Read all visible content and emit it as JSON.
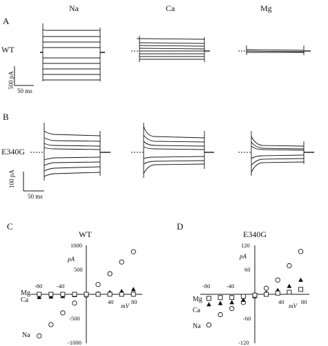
{
  "columns": [
    "Na",
    "Ca",
    "Mg"
  ],
  "panels": {
    "A": {
      "letter": "A",
      "row_label": "WT",
      "scale_y": "500 pA",
      "scale_x": "50 ms"
    },
    "B": {
      "letter": "B",
      "row_label": "E340G",
      "scale_y": "100 pA",
      "scale_x": "50 ms"
    },
    "C": {
      "letter": "C",
      "title": "WT",
      "y_unit": "pA",
      "x_unit": "mV",
      "y_ticks": [
        "1000",
        "500",
        "-500",
        "-1000"
      ],
      "x_ticks": [
        "-80",
        "-40",
        "40",
        "80"
      ],
      "ion_labels": {
        "mg": "Mg",
        "ca": "Ca",
        "na": "Na"
      }
    },
    "D": {
      "letter": "D",
      "title": "E340G",
      "y_unit": "pA",
      "x_unit": "mV",
      "y_ticks": [
        "120",
        "60",
        "-60",
        "-120"
      ],
      "x_ticks": [
        "-80",
        "-40",
        "40",
        "80"
      ],
      "ion_labels": {
        "mg": "Mg",
        "ca": "Ca",
        "na": "Na"
      }
    }
  },
  "chart_data": [
    {
      "type": "scatter",
      "title": "WT",
      "xlabel": "mV",
      "ylabel": "pA",
      "xlim": [
        -95,
        95
      ],
      "ylim": [
        -1000,
        1000
      ],
      "series": [
        {
          "name": "Na",
          "marker": "open-circle",
          "points": [
            [
              -80,
              -850
            ],
            [
              -60,
              -620
            ],
            [
              -40,
              -380
            ],
            [
              -20,
              -180
            ],
            [
              0,
              -20
            ],
            [
              20,
              200
            ],
            [
              40,
              420
            ],
            [
              60,
              660
            ],
            [
              80,
              870
            ]
          ]
        },
        {
          "name": "Ca",
          "marker": "filled-triangle",
          "points": [
            [
              -80,
              -60
            ],
            [
              -60,
              -50
            ],
            [
              -40,
              -40
            ],
            [
              -20,
              -20
            ],
            [
              0,
              0
            ],
            [
              20,
              20
            ],
            [
              40,
              40
            ],
            [
              60,
              60
            ],
            [
              80,
              100
            ]
          ]
        },
        {
          "name": "Mg",
          "marker": "open-square",
          "points": [
            [
              -80,
              0
            ],
            [
              -60,
              0
            ],
            [
              -40,
              0
            ],
            [
              -20,
              0
            ],
            [
              0,
              0
            ],
            [
              20,
              0
            ],
            [
              40,
              0
            ],
            [
              60,
              0
            ],
            [
              80,
              0
            ]
          ]
        }
      ]
    },
    {
      "type": "scatter",
      "title": "E340G",
      "xlabel": "mV",
      "ylabel": "pA",
      "xlim": [
        -95,
        95
      ],
      "ylim": [
        -120,
        120
      ],
      "series": [
        {
          "name": "Na",
          "marker": "open-circle",
          "points": [
            [
              -80,
              -75
            ],
            [
              -60,
              -50
            ],
            [
              -40,
              -35
            ],
            [
              -20,
              -20
            ],
            [
              0,
              -5
            ],
            [
              20,
              15
            ],
            [
              40,
              35
            ],
            [
              60,
              70
            ],
            [
              80,
              105
            ]
          ]
        },
        {
          "name": "Ca",
          "marker": "filled-triangle",
          "points": [
            [
              -80,
              -25
            ],
            [
              -60,
              -22
            ],
            [
              -40,
              -20
            ],
            [
              -20,
              -14
            ],
            [
              0,
              -4
            ],
            [
              20,
              4
            ],
            [
              40,
              10
            ],
            [
              60,
              20
            ],
            [
              80,
              35
            ]
          ]
        },
        {
          "name": "Mg",
          "marker": "open-square",
          "points": [
            [
              -80,
              -10
            ],
            [
              -60,
              -8
            ],
            [
              -40,
              -8
            ],
            [
              -20,
              -5
            ],
            [
              0,
              -2
            ],
            [
              20,
              0
            ],
            [
              40,
              3
            ],
            [
              60,
              5
            ],
            [
              80,
              12
            ]
          ]
        }
      ]
    }
  ]
}
